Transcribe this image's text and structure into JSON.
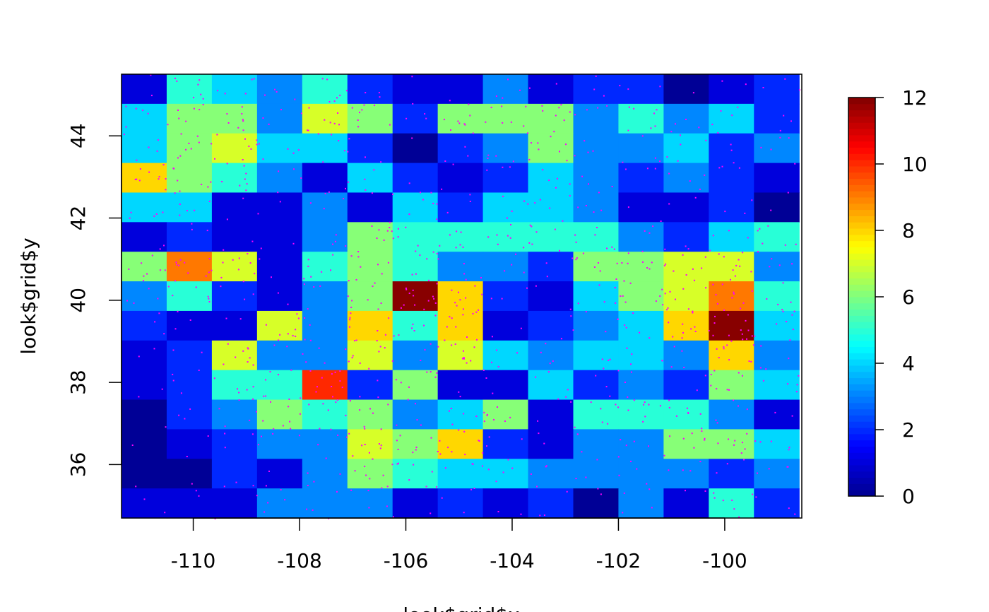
{
  "chart_data": {
    "type": "heatmap",
    "title": "",
    "xlabel": "look$grid$x",
    "ylabel": "look$grid$y",
    "xlim": [
      -111.35,
      -98.55
    ],
    "ylim": [
      34.7,
      45.5
    ],
    "x_ticks": [
      -110,
      -108,
      -106,
      -104,
      -102,
      -100
    ],
    "x_tick_labels": [
      "-110",
      "-108",
      "-106",
      "-104",
      "-102",
      "-100"
    ],
    "y_ticks": [
      36,
      38,
      40,
      42,
      44
    ],
    "y_tick_labels": [
      "36",
      "38",
      "40",
      "42",
      "44"
    ],
    "x_centers": [
      -110.925,
      -110.075,
      -109.225,
      -108.375,
      -107.525,
      -106.675,
      -105.825,
      -104.975,
      -104.125,
      -103.275,
      -102.425,
      -101.575,
      -100.725,
      -99.875,
      -99.025
    ],
    "y_centers": [
      45.14,
      44.42,
      43.7,
      42.98,
      42.26,
      41.54,
      40.82,
      40.1,
      39.38,
      38.66,
      37.94,
      37.22,
      36.5,
      35.78,
      35.06
    ],
    "z": [
      [
        1.0,
        5.0,
        4.0,
        3.0,
        5.0,
        2.0,
        1.0,
        1.0,
        3.0,
        1.0,
        2.0,
        2.0,
        0.0,
        1.0,
        2.0
      ],
      [
        4.0,
        6.0,
        6.0,
        3.0,
        7.0,
        6.0,
        2.0,
        6.0,
        6.0,
        6.0,
        3.0,
        5.0,
        3.0,
        4.0,
        2.0
      ],
      [
        4.0,
        6.0,
        7.0,
        4.0,
        4.0,
        2.0,
        0.0,
        2.0,
        3.0,
        6.0,
        3.0,
        3.0,
        4.0,
        2.0,
        3.0
      ],
      [
        8.0,
        6.0,
        5.0,
        3.0,
        1.0,
        4.0,
        2.0,
        1.0,
        2.0,
        4.0,
        3.0,
        2.0,
        3.0,
        2.0,
        1.0
      ],
      [
        4.0,
        4.0,
        1.0,
        1.0,
        3.0,
        1.0,
        4.0,
        2.0,
        4.0,
        4.0,
        3.0,
        1.0,
        1.0,
        2.0,
        0.0
      ],
      [
        1.0,
        2.0,
        1.0,
        1.0,
        3.0,
        6.0,
        5.0,
        5.0,
        5.0,
        5.0,
        5.0,
        3.0,
        2.0,
        4.0,
        5.0
      ],
      [
        6.0,
        9.0,
        7.0,
        1.0,
        5.0,
        6.0,
        5.0,
        3.0,
        3.0,
        2.0,
        6.0,
        6.0,
        7.0,
        7.0,
        3.0
      ],
      [
        3.0,
        5.0,
        2.0,
        1.0,
        3.0,
        6.0,
        12.0,
        8.0,
        2.0,
        1.0,
        4.0,
        6.0,
        7.0,
        9.0,
        5.0
      ],
      [
        2.0,
        1.0,
        1.0,
        7.0,
        3.0,
        8.0,
        5.0,
        8.0,
        1.0,
        2.0,
        3.0,
        4.0,
        8.0,
        12.0,
        4.0
      ],
      [
        1.0,
        2.0,
        7.0,
        3.0,
        3.0,
        7.0,
        3.0,
        7.0,
        4.0,
        3.0,
        4.0,
        4.0,
        3.0,
        8.0,
        3.0
      ],
      [
        1.0,
        2.0,
        5.0,
        5.0,
        10.0,
        2.0,
        6.0,
        1.0,
        1.0,
        4.0,
        2.0,
        3.0,
        2.0,
        6.0,
        4.0
      ],
      [
        0.0,
        2.0,
        3.0,
        6.0,
        5.0,
        6.0,
        3.0,
        4.0,
        6.0,
        1.0,
        5.0,
        5.0,
        5.0,
        3.0,
        1.0
      ],
      [
        0.0,
        1.0,
        2.0,
        3.0,
        3.0,
        7.0,
        6.0,
        8.0,
        2.0,
        1.0,
        3.0,
        3.0,
        6.0,
        6.0,
        4.0
      ],
      [
        0.0,
        0.0,
        2.0,
        1.0,
        3.0,
        6.0,
        5.0,
        4.0,
        4.0,
        3.0,
        3.0,
        3.0,
        3.0,
        2.0,
        3.0
      ],
      [
        1.0,
        1.0,
        1.0,
        3.0,
        3.0,
        3.0,
        1.0,
        2.0,
        1.0,
        2.0,
        0.0,
        3.0,
        1.0,
        5.0,
        2.0
      ]
    ],
    "zlim": [
      0,
      12
    ],
    "colorbar": {
      "ticks": [
        0,
        2,
        4,
        6,
        8,
        10,
        12
      ],
      "tick_labels": [
        "0",
        "2",
        "4",
        "6",
        "8",
        "10",
        "12"
      ],
      "placement": "right"
    },
    "colormap": "tim.colors (dark blue → blue → cyan → yellow → red → dark red)",
    "point_color": "#ff00ff",
    "grid": false,
    "legend": "none"
  }
}
